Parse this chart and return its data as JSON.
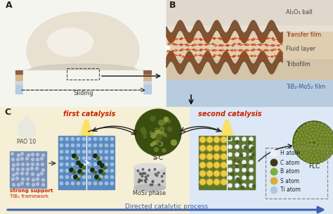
{
  "fig_width": 4.74,
  "fig_height": 3.04,
  "dpi": 100,
  "bg_color": "#ffffff",
  "panel_A_bg": "#f5f5f0",
  "panel_B_bg": "#f0ece4",
  "panel_C_bg_left": "#f5f0d5",
  "panel_C_bg_right": "#dce8f5",
  "layers_B_colors": [
    "#e0d8cc",
    "#9b6b3e",
    "#dfc9a8",
    "#9b6b3e",
    "#b8ccdf"
  ],
  "wave_brown": "#7a4e2d",
  "ball_color": "#e8e0d0",
  "ball_light": "#f5f2ec",
  "ball_shadow": "#c8c0b0",
  "substrate_blue": "#b8ccdf",
  "substrate_tan": "#d4b88a",
  "substrate_brown": "#8a6040",
  "label_color": "#222222",
  "sliding_color": "#333333",
  "red_text": "#cc2200",
  "blue_arrow": "#4060b0",
  "dark_olive": "#4a5c1a",
  "mid_olive": "#6b7c2a",
  "bright_olive": "#8a9a3a",
  "legend_colors": [
    "#f0f0f0",
    "#3a3a1a",
    "#7ab03a",
    "#d4b030",
    "#b0c8e0"
  ],
  "legend_items": [
    "H atom",
    "C atom",
    "B atom",
    "S atom",
    "Ti atom"
  ],
  "mol_red": "#cc3300",
  "panel_B_label_colors": [
    "#444444",
    "#8b3010",
    "#444444",
    "#444444",
    "#4060b0"
  ],
  "transfer_film_color": "#9b6b3e",
  "tribofilm_color": "#9b6b3e"
}
